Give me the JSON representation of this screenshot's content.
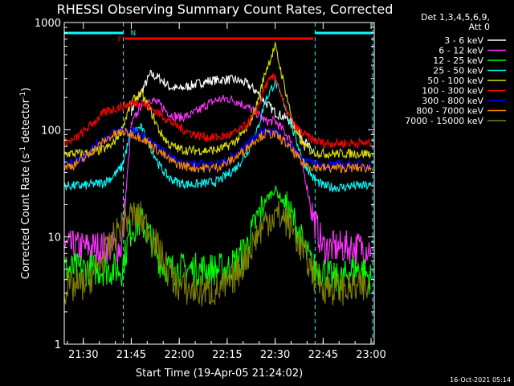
{
  "chart_data": {
    "type": "line",
    "title": "RHESSI Observing Summary Count Rates, Corrected",
    "xlabel": "Start Time (19-Apr-05 21:24:02)",
    "ylabel": "Corrected Count Rate (s⁻¹ detector⁻¹)",
    "yscale": "log",
    "ylim": [
      1,
      1000
    ],
    "xlim": [
      "21:24:02",
      "23:01:00"
    ],
    "x_ticks": [
      "21:30",
      "21:45",
      "22:00",
      "22:15",
      "22:30",
      "22:45",
      "23:00"
    ],
    "y_ticks": [
      "1",
      "10",
      "100",
      "1000"
    ],
    "legend_title": [
      "Det 1,3,4,5,6,9,",
      "Att 0"
    ],
    "legend_position": "right",
    "grid": false,
    "x": [
      "21:24",
      "21:27",
      "21:30",
      "21:33",
      "21:36",
      "21:39",
      "21:42",
      "21:45",
      "21:48",
      "21:51",
      "21:54",
      "21:57",
      "22:00",
      "22:03",
      "22:06",
      "22:09",
      "22:12",
      "22:15",
      "22:18",
      "22:21",
      "22:24",
      "22:27",
      "22:30",
      "22:33",
      "22:36",
      "22:39",
      "22:42",
      "22:45",
      "22:48",
      "22:51",
      "22:54",
      "22:57",
      "23:00"
    ],
    "series": [
      {
        "name": "3 - 6 keV",
        "color": "#ffffff",
        "values": [
          null,
          null,
          null,
          null,
          null,
          null,
          null,
          150,
          220,
          330,
          300,
          250,
          240,
          255,
          270,
          285,
          290,
          295,
          290,
          270,
          230,
          180,
          145,
          130,
          115,
          80,
          60,
          null,
          null,
          null,
          null,
          null,
          null
        ]
      },
      {
        "name": "6 - 12 keV",
        "color": "#ff33ff",
        "values": [
          8,
          8,
          8,
          8,
          8,
          8,
          8,
          110,
          170,
          195,
          170,
          140,
          130,
          135,
          150,
          175,
          190,
          195,
          185,
          165,
          145,
          120,
          120,
          95,
          70,
          40,
          15,
          8,
          8,
          8,
          8,
          8,
          8
        ]
      },
      {
        "name": "12 - 25 keV",
        "color": "#00ff00",
        "values": [
          5,
          5,
          5,
          5,
          5,
          5,
          5,
          12,
          14,
          10,
          6,
          5,
          5,
          5,
          5,
          5,
          5,
          5,
          6,
          8,
          14,
          22,
          28,
          20,
          14,
          8,
          5,
          5,
          4,
          4,
          5,
          5,
          4
        ]
      },
      {
        "name": "25 - 50 keV",
        "color": "#00ffff",
        "values": [
          30,
          30,
          30,
          31,
          32,
          36,
          45,
          95,
          105,
          70,
          45,
          35,
          32,
          31,
          31,
          32,
          33,
          38,
          45,
          60,
          90,
          190,
          280,
          170,
          90,
          50,
          35,
          30,
          29,
          29,
          30,
          30,
          30
        ]
      },
      {
        "name": "50 - 100 keV",
        "color": "#dddd00",
        "values": [
          60,
          60,
          60,
          62,
          65,
          72,
          100,
          180,
          220,
          150,
          95,
          72,
          66,
          64,
          64,
          64,
          65,
          70,
          80,
          100,
          160,
          350,
          600,
          250,
          100,
          70,
          62,
          60,
          60,
          60,
          60,
          60,
          60
        ]
      },
      {
        "name": "100 - 300 keV",
        "color": "#ff0000",
        "values": [
          75,
          80,
          95,
          115,
          140,
          155,
          165,
          175,
          180,
          160,
          140,
          120,
          105,
          95,
          88,
          85,
          85,
          88,
          95,
          110,
          140,
          260,
          320,
          160,
          110,
          90,
          80,
          75,
          75,
          75,
          75,
          75,
          75
        ]
      },
      {
        "name": "300 - 800 keV",
        "color": "#0000ff",
        "values": [
          48,
          50,
          56,
          68,
          80,
          92,
          100,
          98,
          90,
          78,
          66,
          56,
          50,
          48,
          47,
          47,
          48,
          52,
          60,
          72,
          88,
          98,
          95,
          82,
          65,
          52,
          48,
          47,
          47,
          47,
          47,
          47,
          47
        ]
      },
      {
        "name": "800 - 7000 keV",
        "color": "#ff8800",
        "values": [
          45,
          47,
          53,
          64,
          76,
          88,
          95,
          92,
          85,
          73,
          62,
          52,
          47,
          45,
          44,
          44,
          45,
          49,
          56,
          67,
          82,
          92,
          90,
          77,
          60,
          48,
          45,
          44,
          44,
          44,
          44,
          44,
          44
        ]
      },
      {
        "name": "7000 - 15000 keV",
        "color": "#808000",
        "values": [
          3.3,
          3.4,
          3.6,
          4.5,
          6,
          9,
          13,
          16,
          15,
          11,
          7,
          4.5,
          3.5,
          3.2,
          3.1,
          3.1,
          3.2,
          3.5,
          4.5,
          6.5,
          10,
          14,
          16,
          15,
          11,
          7,
          4.5,
          3.5,
          3.3,
          3.3,
          3.3,
          3.3,
          3.3
        ]
      }
    ],
    "annotations": [
      {
        "label": "F",
        "color": "#ff0000",
        "start": "21:43",
        "end": "22:42"
      },
      {
        "label": "N",
        "color": "#00ffff",
        "start": "21:43",
        "end": "21:43"
      }
    ],
    "night_intervals": [
      [
        "21:24:02",
        "21:42:30"
      ],
      [
        "22:42:30",
        "23:00:30"
      ]
    ]
  },
  "footer": {
    "date_stamp": "16-Oct-2021 05:14"
  }
}
